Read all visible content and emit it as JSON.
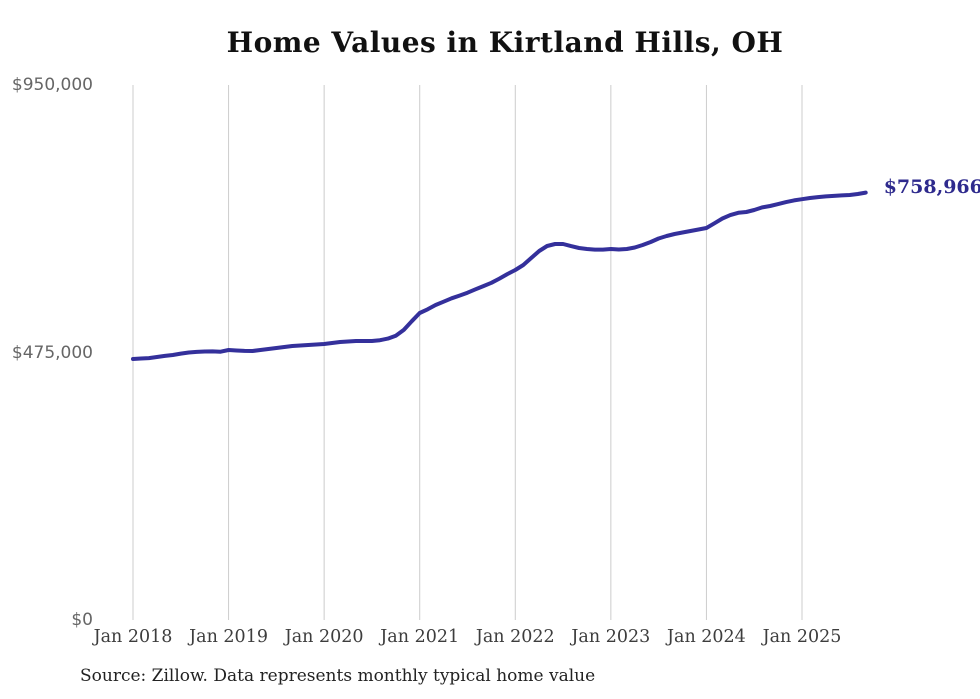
{
  "chart": {
    "title": "Home Values in Kirtland Hills, OH",
    "end_label": "$758,966",
    "source_note": "Source: Zillow. Data represents monthly typical home value"
  },
  "chart_data": {
    "type": "line",
    "title": "Home Values in Kirtland Hills, OH",
    "x_start": "Jan 2018",
    "x_end": "Sep 2025",
    "x_frequency": "monthly",
    "x_tick_labels": [
      "Jan 2018",
      "Jan 2019",
      "Jan 2020",
      "Jan 2021",
      "Jan 2022",
      "Jan 2023",
      "Jan 2024",
      "Jan 2025"
    ],
    "y_ticks": [
      {
        "label": "$950,000",
        "value": 950000
      },
      {
        "label": "$475,000",
        "value": 475000
      },
      {
        "label": "$0",
        "value": 0
      }
    ],
    "ylim": [
      0,
      950000
    ],
    "grid": "vertical-only",
    "legend": "none",
    "line_color": "#34309b",
    "end_label_color": "#2e2a8d",
    "grid_color": "#cccccc",
    "series": [
      {
        "name": "Monthly typical home value",
        "values": [
          463400,
          464300,
          465100,
          467000,
          468900,
          470600,
          473100,
          475000,
          476000,
          476800,
          477000,
          476500,
          479400,
          478600,
          477800,
          477700,
          479400,
          481200,
          483000,
          484700,
          486500,
          487400,
          488300,
          489200,
          490100,
          491900,
          493600,
          494600,
          495400,
          495400,
          495500,
          496800,
          499600,
          504900,
          515200,
          530600,
          545200,
          551700,
          559300,
          565200,
          571200,
          576000,
          581200,
          587200,
          592900,
          598800,
          606300,
          614200,
          621500,
          630400,
          642800,
          655200,
          664100,
          667700,
          667600,
          664000,
          660500,
          658700,
          657800,
          657800,
          658700,
          657900,
          658700,
          661400,
          665900,
          671200,
          677400,
          681900,
          685400,
          688100,
          690700,
          693400,
          696000,
          704500,
          713000,
          719000,
          723000,
          724500,
          728100,
          732700,
          735200,
          738600,
          742000,
          745000,
          747200,
          749300,
          751000,
          752100,
          753100,
          754000,
          754600,
          756400,
          758966
        ]
      }
    ],
    "end_annotation": {
      "label": "$758,966",
      "value": 758966
    }
  }
}
